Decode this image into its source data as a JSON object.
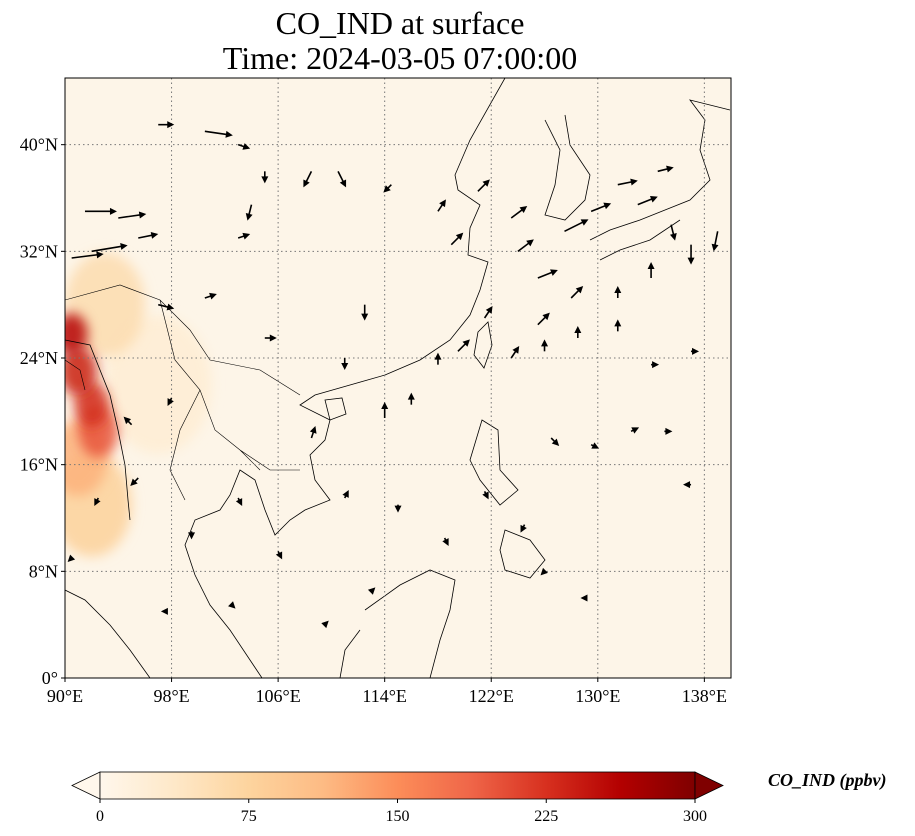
{
  "title": {
    "line1": "CO_IND at surface",
    "line2": "Time: 2024-03-05 07:00:00"
  },
  "map": {
    "variable": "CO_IND",
    "level": "surface",
    "projection": "PlateCarree",
    "lon_range": [
      90,
      140
    ],
    "lat_range": [
      0,
      45
    ],
    "lon_ticks": [
      90,
      98,
      106,
      114,
      122,
      130,
      138
    ],
    "lat_ticks": [
      0,
      8,
      16,
      24,
      32,
      40
    ],
    "lon_tick_labels": [
      "90°E",
      "98°E",
      "106°E",
      "114°E",
      "122°E",
      "130°E",
      "138°E"
    ],
    "lat_tick_labels": [
      "0°",
      "8°N",
      "16°N",
      "24°N",
      "32°N",
      "40°N"
    ],
    "gridlines": "dotted gray",
    "background_color": "#fdf5e8"
  },
  "colorbar": {
    "label": "CO_IND (ppbv)",
    "ticks": [
      0,
      75,
      150,
      225,
      300
    ],
    "tick_labels": [
      "0",
      "75",
      "150",
      "225",
      "300"
    ],
    "range": [
      0,
      300
    ],
    "extend": "both",
    "colormap": "OrRd",
    "colors": [
      "#fff7ec",
      "#fee8c8",
      "#fdd49e",
      "#fdbb84",
      "#fc8d59",
      "#ef6548",
      "#d7301f",
      "#b30000",
      "#7f0000"
    ]
  },
  "emission_hotspots": [
    {
      "lon": 90.5,
      "lat": 25.8,
      "value": 260,
      "spread_deg": 1.2
    },
    {
      "lon": 91.0,
      "lat": 23.0,
      "value": 240,
      "spread_deg": 1.4
    },
    {
      "lon": 92.0,
      "lat": 20.5,
      "value": 230,
      "spread_deg": 1.3
    },
    {
      "lon": 92.5,
      "lat": 18.5,
      "value": 200,
      "spread_deg": 1.5
    },
    {
      "lon": 91.0,
      "lat": 16.5,
      "value": 120,
      "spread_deg": 2.2
    },
    {
      "lon": 92.0,
      "lat": 13.0,
      "value": 80,
      "spread_deg": 3.0
    },
    {
      "lon": 93.0,
      "lat": 28.0,
      "value": 60,
      "spread_deg": 3.0
    },
    {
      "lon": 97.0,
      "lat": 22.0,
      "value": 25,
      "spread_deg": 4.0
    }
  ],
  "wind_vectors": [
    {
      "lon": 90.5,
      "lat": 31.5,
      "u": 8,
      "v": 1
    },
    {
      "lon": 91.5,
      "lat": 35.0,
      "u": 8,
      "v": 0
    },
    {
      "lon": 92.0,
      "lat": 32.0,
      "u": 9,
      "v": 1.5
    },
    {
      "lon": 94.0,
      "lat": 34.5,
      "u": 7,
      "v": 1
    },
    {
      "lon": 95.5,
      "lat": 33.0,
      "u": 5,
      "v": 1
    },
    {
      "lon": 97.0,
      "lat": 41.5,
      "u": 4,
      "v": 0
    },
    {
      "lon": 100.5,
      "lat": 41.0,
      "u": 7,
      "v": -1
    },
    {
      "lon": 103.0,
      "lat": 40.0,
      "u": 3,
      "v": -1
    },
    {
      "lon": 104.0,
      "lat": 35.5,
      "u": -1,
      "v": -4
    },
    {
      "lon": 103.0,
      "lat": 33.0,
      "u": 3,
      "v": 1
    },
    {
      "lon": 105.0,
      "lat": 38.0,
      "u": 0,
      "v": -3
    },
    {
      "lon": 108.5,
      "lat": 38.0,
      "u": -2,
      "v": -4
    },
    {
      "lon": 110.5,
      "lat": 38.0,
      "u": 2,
      "v": -4
    },
    {
      "lon": 114.5,
      "lat": 37.0,
      "u": -2,
      "v": -2
    },
    {
      "lon": 118.0,
      "lat": 35.0,
      "u": 2,
      "v": 3
    },
    {
      "lon": 119.0,
      "lat": 32.5,
      "u": 3,
      "v": 3
    },
    {
      "lon": 121.0,
      "lat": 36.5,
      "u": 3,
      "v": 3
    },
    {
      "lon": 123.5,
      "lat": 34.5,
      "u": 4,
      "v": 3
    },
    {
      "lon": 124.0,
      "lat": 32.0,
      "u": 4,
      "v": 3
    },
    {
      "lon": 125.5,
      "lat": 30.0,
      "u": 5,
      "v": 2
    },
    {
      "lon": 127.5,
      "lat": 33.5,
      "u": 6,
      "v": 3
    },
    {
      "lon": 129.5,
      "lat": 35.0,
      "u": 5,
      "v": 2
    },
    {
      "lon": 131.5,
      "lat": 37.0,
      "u": 5,
      "v": 1
    },
    {
      "lon": 134.5,
      "lat": 38.0,
      "u": 4,
      "v": 1
    },
    {
      "lon": 133.0,
      "lat": 35.5,
      "u": 5,
      "v": 2
    },
    {
      "lon": 135.5,
      "lat": 34.0,
      "u": 1,
      "v": -4
    },
    {
      "lon": 137.0,
      "lat": 32.5,
      "u": 0,
      "v": -5
    },
    {
      "lon": 139.0,
      "lat": 33.5,
      "u": -1,
      "v": -5
    },
    {
      "lon": 134.0,
      "lat": 30.0,
      "u": 0,
      "v": 4
    },
    {
      "lon": 131.5,
      "lat": 28.5,
      "u": 0,
      "v": 3
    },
    {
      "lon": 128.0,
      "lat": 28.5,
      "u": 3,
      "v": 3
    },
    {
      "lon": 125.5,
      "lat": 26.5,
      "u": 3,
      "v": 3
    },
    {
      "lon": 121.5,
      "lat": 27.0,
      "u": 2,
      "v": 3
    },
    {
      "lon": 119.5,
      "lat": 24.5,
      "u": 3,
      "v": 3
    },
    {
      "lon": 123.5,
      "lat": 24.0,
      "u": 2,
      "v": 3
    },
    {
      "lon": 126.0,
      "lat": 24.5,
      "u": 0,
      "v": 3
    },
    {
      "lon": 128.5,
      "lat": 25.5,
      "u": 0,
      "v": 3
    },
    {
      "lon": 131.5,
      "lat": 26.0,
      "u": 0,
      "v": 3
    },
    {
      "lon": 114.0,
      "lat": 19.5,
      "u": 0,
      "v": 4
    },
    {
      "lon": 111.0,
      "lat": 24.0,
      "u": 0,
      "v": -3
    },
    {
      "lon": 112.5,
      "lat": 28.0,
      "u": 0,
      "v": -4
    },
    {
      "lon": 108.5,
      "lat": 18.0,
      "u": 1,
      "v": 3
    },
    {
      "lon": 116.0,
      "lat": 20.5,
      "u": 0,
      "v": 3
    },
    {
      "lon": 118.0,
      "lat": 23.5,
      "u": 0,
      "v": 3
    },
    {
      "lon": 105.0,
      "lat": 25.5,
      "u": 3,
      "v": 0
    },
    {
      "lon": 100.5,
      "lat": 28.5,
      "u": 3,
      "v": 1
    },
    {
      "lon": 97.0,
      "lat": 28.0,
      "u": 4,
      "v": -1
    },
    {
      "lon": 98.0,
      "lat": 21.0,
      "u": -1,
      "v": -2
    },
    {
      "lon": 95.0,
      "lat": 19.0,
      "u": -2,
      "v": 2
    },
    {
      "lon": 95.5,
      "lat": 15.0,
      "u": -2,
      "v": -2
    },
    {
      "lon": 92.5,
      "lat": 13.5,
      "u": -1,
      "v": -2
    },
    {
      "lon": 90.5,
      "lat": 9.0,
      "u": -1,
      "v": -1
    },
    {
      "lon": 99.5,
      "lat": 11.0,
      "u": 0,
      "v": -2
    },
    {
      "lon": 103.0,
      "lat": 13.5,
      "u": 1,
      "v": -2
    },
    {
      "lon": 106.0,
      "lat": 9.5,
      "u": 1,
      "v": -2
    },
    {
      "lon": 111.0,
      "lat": 13.5,
      "u": 1,
      "v": 2
    },
    {
      "lon": 115.0,
      "lat": 13.0,
      "u": 0,
      "v": -2
    },
    {
      "lon": 118.5,
      "lat": 10.5,
      "u": 1,
      "v": -2
    },
    {
      "lon": 121.5,
      "lat": 14.0,
      "u": 1,
      "v": -2
    },
    {
      "lon": 124.5,
      "lat": 11.5,
      "u": -1,
      "v": -2
    },
    {
      "lon": 126.5,
      "lat": 18.0,
      "u": 2,
      "v": -2
    },
    {
      "lon": 129.5,
      "lat": 17.5,
      "u": 2,
      "v": -1
    },
    {
      "lon": 132.5,
      "lat": 18.5,
      "u": 2,
      "v": 1
    },
    {
      "lon": 135.0,
      "lat": 18.5,
      "u": 2,
      "v": 0
    },
    {
      "lon": 137.0,
      "lat": 14.5,
      "u": -2,
      "v": 0
    },
    {
      "lon": 134.0,
      "lat": 23.5,
      "u": 2,
      "v": 0
    },
    {
      "lon": 137.0,
      "lat": 24.5,
      "u": 2,
      "v": 0
    },
    {
      "lon": 126.0,
      "lat": 8.0,
      "u": -1,
      "v": -1
    },
    {
      "lon": 129.0,
      "lat": 6.0,
      "u": -1,
      "v": 0
    },
    {
      "lon": 113.0,
      "lat": 6.5,
      "u": 1,
      "v": 1
    },
    {
      "lon": 102.5,
      "lat": 5.5,
      "u": 1,
      "v": -1
    },
    {
      "lon": 109.5,
      "lat": 4.0,
      "u": 1,
      "v": 1
    },
    {
      "lon": 97.5,
      "lat": 5.0,
      "u": -1,
      "v": 0
    }
  ]
}
